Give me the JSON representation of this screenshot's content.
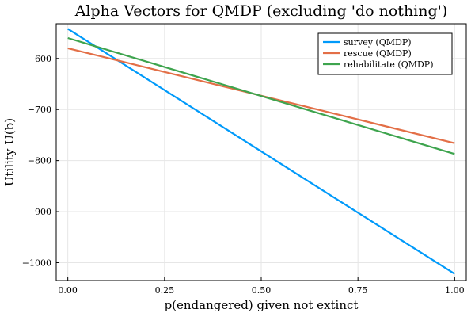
{
  "chart_data": {
    "type": "line",
    "title": "Alpha Vectors for QMDP (excluding 'do nothing')",
    "xlabel": "p(endangered) given not extinct",
    "ylabel": "Utility U(b)",
    "xlim": [
      -0.03,
      1.03
    ],
    "ylim": [
      -1035,
      -532
    ],
    "xticks": [
      0.0,
      0.25,
      0.5,
      0.75,
      1.0
    ],
    "xtick_labels": [
      "0.00",
      "0.25",
      "0.50",
      "0.75",
      "1.00"
    ],
    "yticks": [
      -1000,
      -900,
      -800,
      -700,
      -600
    ],
    "ytick_labels": [
      "−1000",
      "−900",
      "−800",
      "−700",
      "−600"
    ],
    "grid": true,
    "legend_position": "top-right",
    "series": [
      {
        "name": "survey (QMDP)",
        "color": "#009AFA",
        "x": [
          0,
          1
        ],
        "y": [
          -542,
          -1022
        ]
      },
      {
        "name": "rescue (QMDP)",
        "color": "#E36F47",
        "x": [
          0,
          1
        ],
        "y": [
          -580,
          -766
        ]
      },
      {
        "name": "rehabilitate (QMDP)",
        "color": "#3EA44E",
        "x": [
          0,
          1
        ],
        "y": [
          -560,
          -787
        ]
      }
    ]
  }
}
